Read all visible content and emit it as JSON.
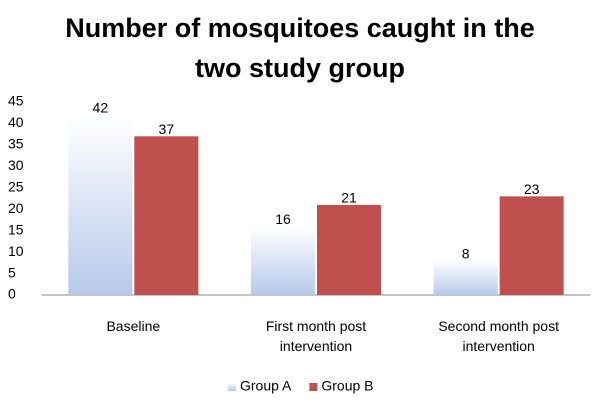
{
  "chart_data": {
    "type": "bar",
    "title": "Number of mosquitoes caught in the two study group",
    "categories": [
      "Baseline",
      "First month post intervention",
      "Second month post intervention"
    ],
    "series": [
      {
        "name": "Group A",
        "color": "#c6d5ef",
        "values": [
          42,
          16,
          8
        ]
      },
      {
        "name": "Group B",
        "color": "#c0504d",
        "values": [
          37,
          21,
          23
        ]
      }
    ],
    "ylim": [
      0,
      45
    ],
    "yticks": [
      0,
      5,
      10,
      15,
      20,
      25,
      30,
      35,
      40,
      45
    ],
    "grid": false,
    "legend": "bottom"
  }
}
